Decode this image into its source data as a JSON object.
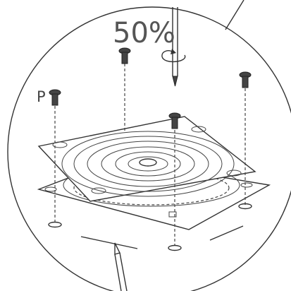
{
  "labels": {
    "scale": "50%",
    "part": "P"
  }
}
